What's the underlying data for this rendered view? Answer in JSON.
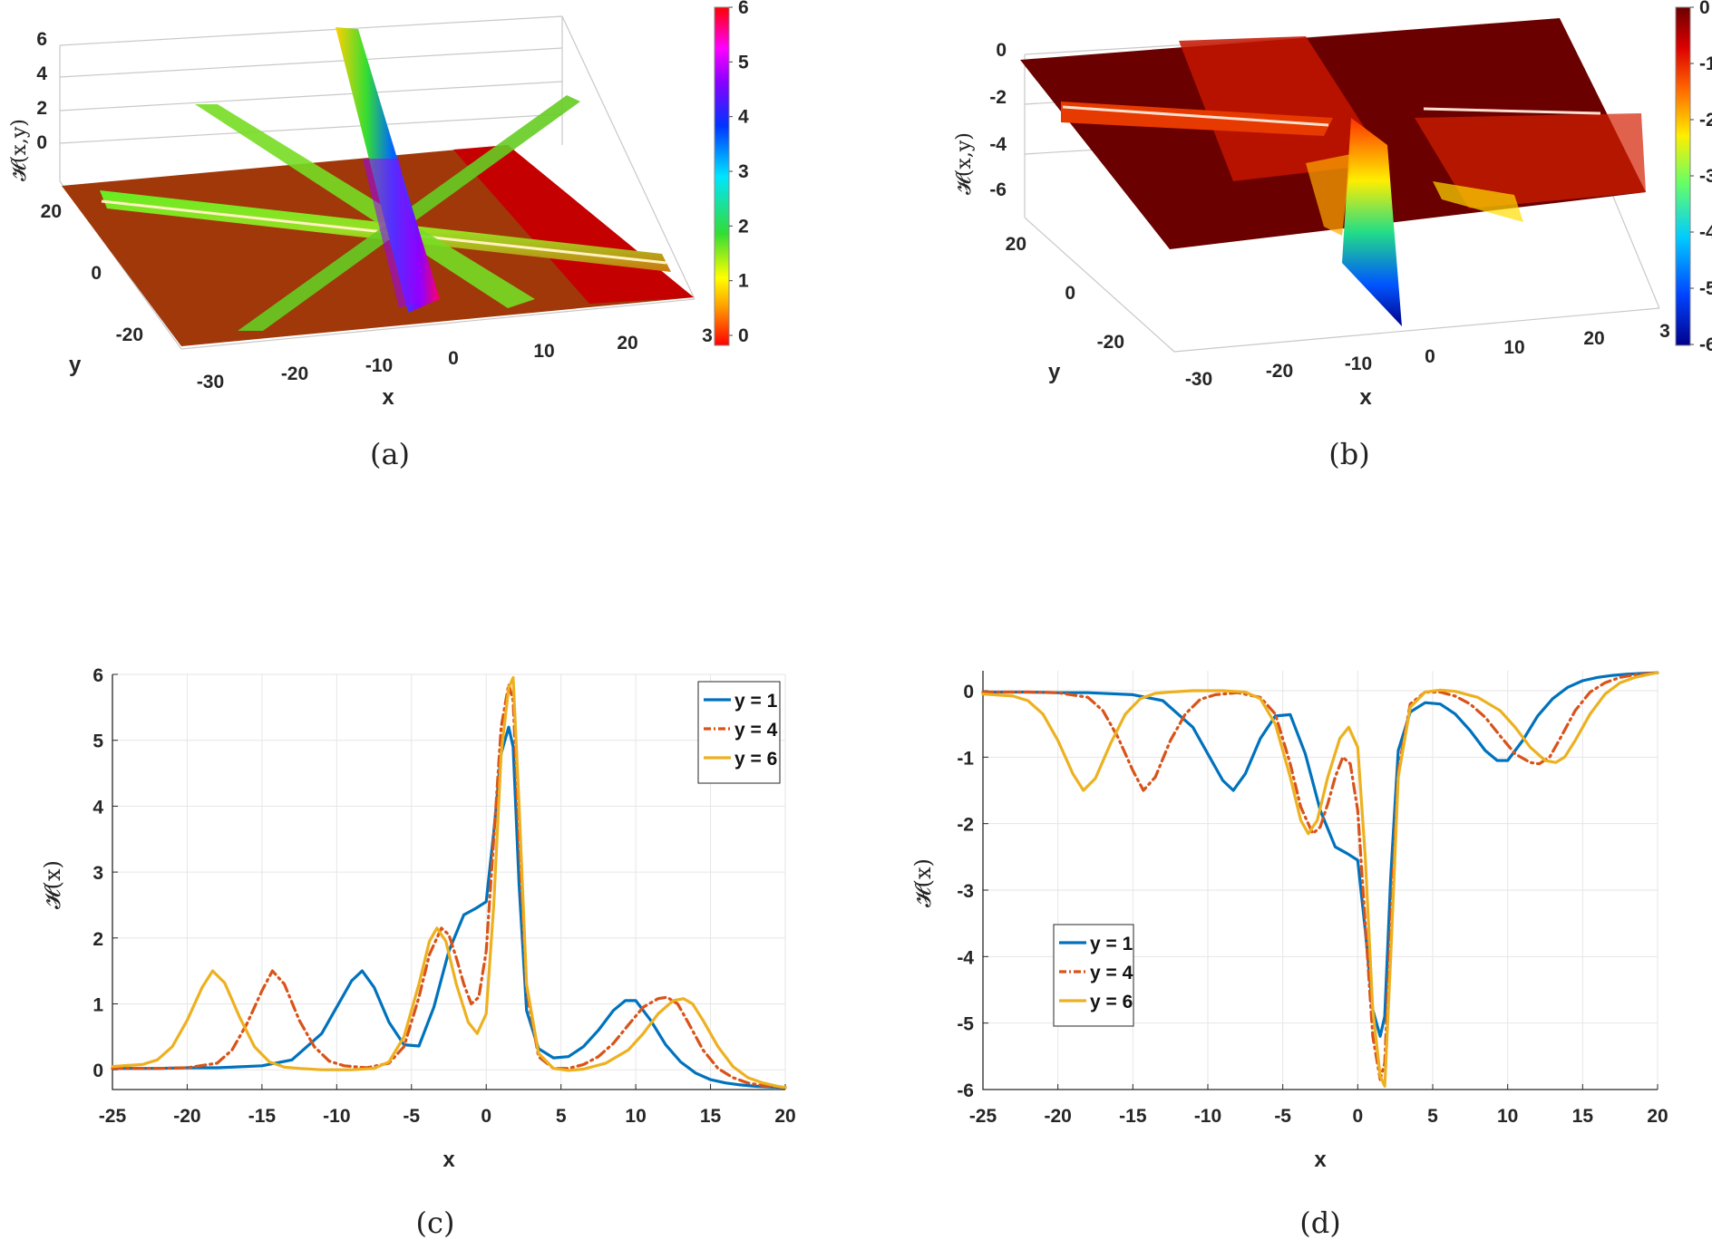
{
  "figure_labels": [
    "(a)",
    "(b)",
    "(c)",
    "(d)"
  ],
  "panel_a": {
    "zlabel": "𝓗(x,y)",
    "xlabel": "x",
    "ylabel": "y",
    "z_ticks": [
      "6",
      "4",
      "2",
      "0"
    ],
    "x_ticks": [
      "-30",
      "-20",
      "-10",
      "0",
      "10",
      "20",
      "3"
    ],
    "y_ticks": [
      "20",
      "0",
      "-20"
    ],
    "colorbar_ticks": [
      "6",
      "5",
      "4",
      "3",
      "2",
      "1",
      "0"
    ],
    "colormap": [
      "#ff0000",
      "#ffa500",
      "#ffff00",
      "#33dd33",
      "#00e5ff",
      "#0033ff",
      "#8a00ff",
      "#ff00ff",
      "#ff0000"
    ]
  },
  "panel_b": {
    "zlabel": "𝓗(x,y)",
    "xlabel": "x",
    "ylabel": "y",
    "z_ticks": [
      "0",
      "-2",
      "-4",
      "-6"
    ],
    "x_ticks": [
      "-30",
      "-20",
      "-10",
      "0",
      "10",
      "20",
      "3"
    ],
    "y_ticks": [
      "20",
      "0",
      "-20"
    ],
    "colorbar_ticks": [
      "0",
      "-1",
      "-2",
      "-3",
      "-4",
      "-5",
      "-6"
    ],
    "colormap": [
      "#00008b",
      "#0044ff",
      "#00ccff",
      "#66ff66",
      "#ffee00",
      "#ff6600",
      "#dd0000",
      "#6b0000"
    ]
  },
  "chart_data": [
    {
      "type": "line",
      "title": "",
      "xlabel": "x",
      "ylabel": "𝓗(x)",
      "xlim": [
        -25,
        20
      ],
      "ylim": [
        -0.3,
        6
      ],
      "x_ticks": [
        "-25",
        "-20",
        "-15",
        "-10",
        "-5",
        "0",
        "5",
        "10",
        "15",
        "20"
      ],
      "y_ticks": [
        "0",
        "1",
        "2",
        "3",
        "4",
        "5",
        "6"
      ],
      "legend_position": "top-right",
      "series": [
        {
          "name": "y = 1",
          "color": "#0072BD",
          "dash": "solid",
          "x": [
            -25,
            -22,
            -20,
            -18,
            -15,
            -13,
            -11,
            -10,
            -9,
            -8.3,
            -7.5,
            -6.5,
            -5.5,
            -4.5,
            -3.5,
            -2.5,
            -1.5,
            -0.7,
            0,
            0.5,
            1,
            1.5,
            1.8,
            2.2,
            2.7,
            3.5,
            4.5,
            5.5,
            6.5,
            7.5,
            8.5,
            9.3,
            10,
            11,
            12,
            13,
            14,
            15,
            16,
            17,
            18,
            19,
            20
          ],
          "y": [
            0.02,
            0.02,
            0.03,
            0.03,
            0.06,
            0.15,
            0.55,
            0.95,
            1.35,
            1.5,
            1.25,
            0.72,
            0.38,
            0.36,
            0.95,
            1.8,
            2.35,
            2.45,
            2.55,
            3.6,
            4.8,
            5.2,
            4.9,
            2.8,
            0.9,
            0.32,
            0.18,
            0.2,
            0.35,
            0.6,
            0.9,
            1.05,
            1.05,
            0.75,
            0.38,
            0.12,
            -0.05,
            -0.15,
            -0.2,
            -0.23,
            -0.25,
            -0.26,
            -0.27
          ]
        },
        {
          "name": "y = 4",
          "color": "#D95319",
          "dash": "dashdot",
          "x": [
            -25,
            -22,
            -20,
            -18,
            -17,
            -16,
            -15,
            -14.3,
            -13.5,
            -12.5,
            -11.5,
            -10.5,
            -9.5,
            -8,
            -6.5,
            -5.5,
            -4.5,
            -3.8,
            -3,
            -2.5,
            -2,
            -1.5,
            -1,
            -0.5,
            0,
            0.5,
            1,
            1.5,
            1.8,
            2.2,
            2.7,
            3.5,
            4.5,
            5.5,
            6.5,
            7.5,
            8.5,
            9.5,
            10.5,
            11.5,
            12.1,
            12.8,
            13.5,
            14.5,
            15.5,
            16.5,
            17.5,
            18.5,
            19.5,
            20
          ],
          "y": [
            0.02,
            0.02,
            0.03,
            0.1,
            0.3,
            0.7,
            1.2,
            1.5,
            1.3,
            0.75,
            0.35,
            0.13,
            0.06,
            0.03,
            0.1,
            0.35,
            1.1,
            1.75,
            2.15,
            2.05,
            1.7,
            1.3,
            1.0,
            1.1,
            1.8,
            3.5,
            5.2,
            5.85,
            5.6,
            3.5,
            1.2,
            0.2,
            0.02,
            0.02,
            0.08,
            0.2,
            0.4,
            0.68,
            0.95,
            1.08,
            1.1,
            1.0,
            0.72,
            0.3,
            0.02,
            -0.12,
            -0.2,
            -0.24,
            -0.26,
            -0.27
          ]
        },
        {
          "name": "y = 6",
          "color": "#EDB120",
          "dash": "solid",
          "x": [
            -25,
            -23,
            -22,
            -21,
            -20,
            -19,
            -18.3,
            -17.5,
            -16.5,
            -15.5,
            -14.5,
            -13.5,
            -12.5,
            -11,
            -9,
            -7.5,
            -6.5,
            -5.5,
            -4.5,
            -3.8,
            -3.3,
            -2.7,
            -2,
            -1.2,
            -0.6,
            0,
            0.5,
            1,
            1.5,
            1.8,
            2.2,
            2.7,
            3.5,
            4.5,
            5.5,
            6.5,
            8,
            9.5,
            10.5,
            11.5,
            12.5,
            13.2,
            13.8,
            14.5,
            15.5,
            16.5,
            17.5,
            18.5,
            19.5,
            20
          ],
          "y": [
            0.05,
            0.08,
            0.15,
            0.35,
            0.75,
            1.25,
            1.5,
            1.32,
            0.8,
            0.35,
            0.12,
            0.04,
            0.02,
            0.0,
            0.0,
            0.02,
            0.12,
            0.5,
            1.3,
            1.95,
            2.15,
            1.95,
            1.3,
            0.72,
            0.55,
            0.85,
            2.5,
            4.8,
            5.8,
            5.95,
            4.0,
            1.3,
            0.25,
            0.02,
            -0.01,
            0.01,
            0.1,
            0.3,
            0.55,
            0.85,
            1.05,
            1.08,
            1.0,
            0.75,
            0.35,
            0.05,
            -0.12,
            -0.2,
            -0.25,
            -0.27
          ]
        }
      ]
    },
    {
      "type": "line",
      "title": "",
      "xlabel": "x",
      "ylabel": "𝓗(x)",
      "xlim": [
        -25,
        20
      ],
      "ylim": [
        -6,
        0.3
      ],
      "x_ticks": [
        "-25",
        "-20",
        "-15",
        "-10",
        "-5",
        "0",
        "5",
        "10",
        "15",
        "20"
      ],
      "y_ticks": [
        "0",
        "-1",
        "-2",
        "-3",
        "-4",
        "-5",
        "-6"
      ],
      "legend_position": "bottom-left",
      "series": [
        {
          "name": "y = 1",
          "color": "#0072BD",
          "dash": "solid",
          "x": [
            -25,
            -22,
            -20,
            -18,
            -15,
            -13,
            -11,
            -10,
            -9,
            -8.3,
            -7.5,
            -6.5,
            -5.5,
            -4.5,
            -3.5,
            -2.5,
            -1.5,
            -0.7,
            0,
            0.5,
            1,
            1.5,
            1.8,
            2.2,
            2.7,
            3.5,
            4.5,
            5.5,
            6.5,
            7.5,
            8.5,
            9.3,
            10,
            11,
            12,
            13,
            14,
            15,
            16,
            17,
            18,
            19,
            20
          ],
          "y": [
            -0.02,
            -0.02,
            -0.03,
            -0.03,
            -0.06,
            -0.15,
            -0.55,
            -0.95,
            -1.35,
            -1.5,
            -1.25,
            -0.72,
            -0.38,
            -0.36,
            -0.95,
            -1.8,
            -2.35,
            -2.45,
            -2.55,
            -3.6,
            -4.8,
            -5.2,
            -4.9,
            -2.8,
            -0.9,
            -0.32,
            -0.18,
            -0.2,
            -0.35,
            -0.6,
            -0.9,
            -1.05,
            -1.05,
            -0.75,
            -0.38,
            -0.12,
            0.05,
            0.15,
            0.2,
            0.23,
            0.25,
            0.26,
            0.27
          ]
        },
        {
          "name": "y = 4",
          "color": "#D95319",
          "dash": "dashdot",
          "x": [
            -25,
            -22,
            -20,
            -18,
            -17,
            -16,
            -15,
            -14.3,
            -13.5,
            -12.5,
            -11.5,
            -10.5,
            -9.5,
            -8,
            -6.5,
            -5.5,
            -4.5,
            -3.8,
            -3,
            -2.5,
            -2,
            -1.5,
            -1,
            -0.5,
            0,
            0.5,
            1,
            1.5,
            1.8,
            2.2,
            2.7,
            3.5,
            4.5,
            5.5,
            6.5,
            7.5,
            8.5,
            9.5,
            10.5,
            11.5,
            12.1,
            12.8,
            13.5,
            14.5,
            15.5,
            16.5,
            17.5,
            18.5,
            19.5,
            20
          ],
          "y": [
            -0.02,
            -0.02,
            -0.03,
            -0.1,
            -0.3,
            -0.7,
            -1.2,
            -1.5,
            -1.3,
            -0.75,
            -0.35,
            -0.13,
            -0.06,
            -0.03,
            -0.1,
            -0.35,
            -1.1,
            -1.75,
            -2.15,
            -2.05,
            -1.7,
            -1.3,
            -1.0,
            -1.1,
            -1.8,
            -3.5,
            -5.2,
            -5.85,
            -5.6,
            -3.5,
            -1.2,
            -0.2,
            -0.02,
            -0.02,
            -0.08,
            -0.2,
            -0.4,
            -0.68,
            -0.95,
            -1.08,
            -1.1,
            -1.0,
            -0.72,
            -0.3,
            -0.02,
            0.12,
            0.2,
            0.24,
            0.26,
            0.27
          ]
        },
        {
          "name": "y = 6",
          "color": "#EDB120",
          "dash": "solid",
          "x": [
            -25,
            -23,
            -22,
            -21,
            -20,
            -19,
            -18.3,
            -17.5,
            -16.5,
            -15.5,
            -14.5,
            -13.5,
            -12.5,
            -11,
            -9,
            -7.5,
            -6.5,
            -5.5,
            -4.5,
            -3.8,
            -3.3,
            -2.7,
            -2,
            -1.2,
            -0.6,
            0,
            0.5,
            1,
            1.5,
            1.8,
            2.2,
            2.7,
            3.5,
            4.5,
            5.5,
            6.5,
            8,
            9.5,
            10.5,
            11.5,
            12.5,
            13.2,
            13.8,
            14.5,
            15.5,
            16.5,
            17.5,
            18.5,
            19.5,
            20
          ],
          "y": [
            -0.05,
            -0.08,
            -0.15,
            -0.35,
            -0.75,
            -1.25,
            -1.5,
            -1.32,
            -0.8,
            -0.35,
            -0.12,
            -0.04,
            -0.02,
            0.0,
            0.0,
            -0.02,
            -0.12,
            -0.5,
            -1.3,
            -1.95,
            -2.15,
            -1.95,
            -1.3,
            -0.72,
            -0.55,
            -0.85,
            -2.5,
            -4.8,
            -5.8,
            -5.95,
            -4.0,
            -1.3,
            -0.25,
            -0.02,
            0.01,
            -0.01,
            -0.1,
            -0.3,
            -0.55,
            -0.85,
            -1.05,
            -1.08,
            -1.0,
            -0.75,
            -0.35,
            -0.05,
            0.12,
            0.2,
            0.25,
            0.27
          ]
        }
      ]
    }
  ]
}
